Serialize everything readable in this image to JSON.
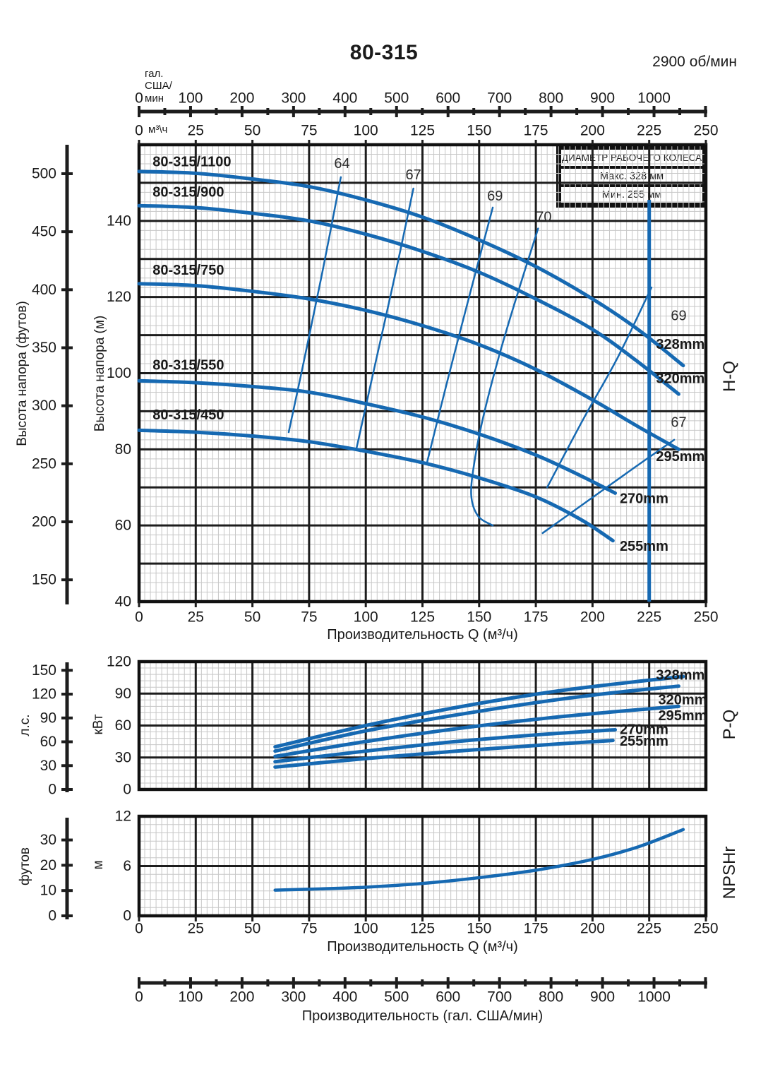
{
  "header": {
    "title": "80-315",
    "speed": "2900 об/мин"
  },
  "impeller_box": {
    "title": "ДИАМЕТР РАБОЧЕГО КОЛЕСА",
    "max_label": "Макс. 328 мм",
    "min_label": "Мин. 255 мм"
  },
  "colors": {
    "curve": "#1669b2",
    "grid_major": "#1d1d1d",
    "grid_minor": "#c7c7c7",
    "border": "#111111",
    "text": "#1a1a1a"
  },
  "top_axis": {
    "unit_gpm": "гал.\nСША/\nмин",
    "gpm_ticks": [
      0,
      100,
      200,
      300,
      400,
      500,
      600,
      700,
      800,
      900,
      1000
    ],
    "unit_m3h": "м³\\ч",
    "m3h_ticks": [
      0,
      25,
      50,
      75,
      100,
      125,
      150,
      175,
      200,
      225,
      250
    ]
  },
  "bottom_axis": {
    "label": "Производительность (гал. США/мин)",
    "gpm_ticks": [
      0,
      100,
      200,
      300,
      400,
      500,
      600,
      700,
      800,
      900,
      1000
    ]
  },
  "chart_data": [
    {
      "type": "line",
      "name": "H-Q",
      "side_label": "H-Q",
      "xlabel": "Производительность Q (м³/ч)",
      "ylabel_m": "Высота напора (м)",
      "ylabel_ft": "Высота напора (футов)",
      "xlim": [
        0,
        250
      ],
      "ylim": [
        40,
        160
      ],
      "x_ticks": [
        0,
        25,
        50,
        75,
        100,
        125,
        150,
        175,
        200,
        225,
        250
      ],
      "y_ticks": [
        140,
        120,
        100,
        80,
        60,
        40
      ],
      "ft_ticks": [
        500,
        450,
        400,
        350,
        300,
        250,
        200,
        150
      ],
      "rated_flow_line": {
        "x": 225,
        "y_from": 40,
        "y_to": 145.5
      },
      "series": [
        {
          "diameter": "328mm",
          "designation": "80-315/1100",
          "designation_pos": {
            "x": 6,
            "y": 155.5
          },
          "label_pos": {
            "x": 228,
            "y": 107.5
          },
          "points": [
            [
              0,
              153
            ],
            [
              25,
              152.5
            ],
            [
              50,
              151
            ],
            [
              75,
              149
            ],
            [
              100,
              145.5
            ],
            [
              125,
              141
            ],
            [
              150,
              135
            ],
            [
              175,
              128
            ],
            [
              200,
              119.5
            ],
            [
              220,
              111.5
            ],
            [
              240,
              102
            ]
          ]
        },
        {
          "diameter": "320mm",
          "designation": "80-315/900",
          "designation_pos": {
            "x": 6,
            "y": 147.5
          },
          "label_pos": {
            "x": 228,
            "y": 98.5
          },
          "points": [
            [
              0,
              144
            ],
            [
              25,
              143.5
            ],
            [
              50,
              142
            ],
            [
              75,
              140
            ],
            [
              100,
              136.5
            ],
            [
              125,
              132
            ],
            [
              150,
              126.5
            ],
            [
              175,
              119.5
            ],
            [
              200,
              111.5
            ],
            [
              220,
              103
            ],
            [
              238,
              94.5
            ]
          ]
        },
        {
          "diameter": "295mm",
          "designation": "80-315/750",
          "designation_pos": {
            "x": 6,
            "y": 127
          },
          "label_pos": {
            "x": 228,
            "y": 78
          },
          "points": [
            [
              0,
              123.5
            ],
            [
              25,
              123
            ],
            [
              50,
              121.5
            ],
            [
              75,
              119.5
            ],
            [
              100,
              116.5
            ],
            [
              125,
              112.5
            ],
            [
              150,
              107.5
            ],
            [
              175,
              101
            ],
            [
              200,
              93
            ],
            [
              220,
              86
            ],
            [
              238,
              80
            ]
          ]
        },
        {
          "diameter": "270mm",
          "designation": "80-315/550",
          "designation_pos": {
            "x": 6,
            "y": 102
          },
          "label_pos": {
            "x": 212,
            "y": 67
          },
          "points": [
            [
              0,
              98
            ],
            [
              25,
              97.5
            ],
            [
              50,
              96.5
            ],
            [
              75,
              95
            ],
            [
              100,
              92
            ],
            [
              125,
              88.5
            ],
            [
              150,
              84
            ],
            [
              175,
              78.5
            ],
            [
              195,
              73
            ],
            [
              210,
              68.5
            ]
          ]
        },
        {
          "diameter": "255mm",
          "designation": "80-315/450",
          "designation_pos": {
            "x": 6,
            "y": 89
          },
          "label_pos": {
            "x": 212,
            "y": 54.5
          },
          "points": [
            [
              0,
              85
            ],
            [
              25,
              84.5
            ],
            [
              50,
              83.5
            ],
            [
              75,
              82
            ],
            [
              100,
              79.5
            ],
            [
              125,
              76.5
            ],
            [
              150,
              72.5
            ],
            [
              175,
              67.5
            ],
            [
              195,
              61.5
            ],
            [
              209,
              56
            ]
          ]
        }
      ],
      "efficiency_lines": [
        {
          "label": "64",
          "label_pos": {
            "x": 89.5,
            "y": 155
          },
          "points": [
            [
              66,
              84.5
            ],
            [
              73,
              104
            ],
            [
              81,
              127
            ],
            [
              89,
              151.5
            ]
          ]
        },
        {
          "label": "67",
          "label_pos": {
            "x": 121,
            "y": 152
          },
          "points": [
            [
              96,
              80.5
            ],
            [
              104,
              102
            ],
            [
              113,
              126
            ],
            [
              121,
              148.5
            ]
          ]
        },
        {
          "label": "69",
          "label_pos": {
            "x": 157,
            "y": 146.5
          },
          "points": [
            [
              127,
              76.5
            ],
            [
              136,
              98
            ],
            [
              146,
              121
            ],
            [
              156,
              143.5
            ]
          ]
        },
        {
          "label": "70",
          "label_pos": {
            "x": 178.5,
            "y": 141
          },
          "points": [
            [
              156,
              60
            ],
            [
              149.5,
              62.5
            ],
            [
              146.5,
              68
            ],
            [
              148,
              77
            ],
            [
              152,
              89
            ],
            [
              159,
              105
            ],
            [
              167,
              121
            ],
            [
              176,
              138
            ]
          ]
        },
        {
          "label": "69",
          "label_pos": {
            "x": 238,
            "y": 115
          },
          "points": [
            [
              180,
              70
            ],
            [
              196,
              88
            ],
            [
              211,
              104
            ],
            [
              226,
              122.5
            ]
          ]
        },
        {
          "label": "67",
          "label_pos": {
            "x": 238,
            "y": 87
          },
          "points": [
            [
              178,
              58
            ],
            [
              198,
              66.5
            ],
            [
              218,
              75
            ],
            [
              236,
              82.5
            ]
          ]
        }
      ]
    },
    {
      "type": "line",
      "name": "P-Q",
      "side_label": "P-Q",
      "ylabel_kw": "кВт",
      "ylabel_hp": "л.с.",
      "xlim": [
        0,
        250
      ],
      "ylim": [
        0,
        120
      ],
      "y_ticks": [
        120,
        90,
        60,
        30,
        0
      ],
      "hp_ticks": [
        150,
        120,
        90,
        60,
        30,
        0
      ],
      "series": [
        {
          "diameter": "328mm",
          "label_pos": {
            "x": 228,
            "y": 107
          },
          "points": [
            [
              60,
              40
            ],
            [
              100,
              60
            ],
            [
              140,
              77
            ],
            [
              180,
              91
            ],
            [
              210,
              99
            ],
            [
              240,
              106
            ]
          ]
        },
        {
          "diameter": "320mm",
          "label_pos": {
            "x": 229,
            "y": 84
          },
          "points": [
            [
              60,
              36
            ],
            [
              100,
              55
            ],
            [
              140,
              70
            ],
            [
              180,
              83
            ],
            [
              210,
              91
            ],
            [
              238,
              97
            ]
          ]
        },
        {
          "diameter": "295mm",
          "label_pos": {
            "x": 229,
            "y": 69
          },
          "points": [
            [
              60,
              31
            ],
            [
              100,
              45
            ],
            [
              140,
              57
            ],
            [
              180,
              67
            ],
            [
              210,
              73
            ],
            [
              238,
              78
            ]
          ]
        },
        {
          "diameter": "270mm",
          "label_pos": {
            "x": 212,
            "y": 56
          },
          "points": [
            [
              60,
              26
            ],
            [
              100,
              36
            ],
            [
              140,
              45
            ],
            [
              180,
              52
            ],
            [
              210,
              56
            ]
          ]
        },
        {
          "diameter": "255mm",
          "label_pos": {
            "x": 212,
            "y": 45
          },
          "points": [
            [
              60,
              21
            ],
            [
              100,
              29
            ],
            [
              140,
              36
            ],
            [
              180,
              42
            ],
            [
              209,
              46
            ]
          ]
        }
      ]
    },
    {
      "type": "line",
      "name": "NPSHr",
      "side_label": "NPSHr",
      "xlabel": "Производительность Q (м³/ч)",
      "ylabel_m": "м",
      "ylabel_ft": "футов",
      "xlim": [
        0,
        250
      ],
      "ylim": [
        0,
        12
      ],
      "x_ticks": [
        0,
        25,
        50,
        75,
        100,
        125,
        150,
        175,
        200,
        225,
        250
      ],
      "y_ticks": [
        12,
        6,
        0
      ],
      "ft_ticks": [
        30,
        20,
        10,
        0
      ],
      "series": [
        {
          "diameter": "NPSHr",
          "points": [
            [
              60,
              3.1
            ],
            [
              80,
              3.25
            ],
            [
              100,
              3.45
            ],
            [
              125,
              3.9
            ],
            [
              150,
              4.6
            ],
            [
              175,
              5.5
            ],
            [
              200,
              6.8
            ],
            [
              220,
              8.3
            ],
            [
              240,
              10.4
            ]
          ]
        }
      ]
    }
  ]
}
